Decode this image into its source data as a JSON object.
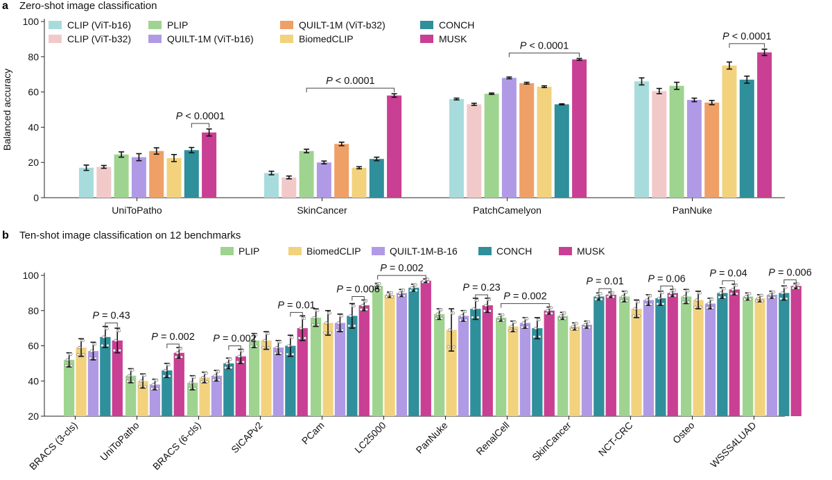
{
  "chart_data": [
    {
      "panel": "a",
      "type": "bar",
      "title": "Zero-shot image classification",
      "ylabel": "Balanced accuracy",
      "ylim": [
        0,
        100
      ],
      "yticks": [
        0,
        20,
        40,
        60,
        80,
        100
      ],
      "categories": [
        "UniToPatho",
        "SkinCancer",
        "PatchCamelyon",
        "PanNuke"
      ],
      "series": [
        {
          "name": "CLIP (ViT-b16)",
          "color": "#a8dcdc",
          "values": [
            17,
            14,
            56,
            66
          ],
          "err": [
            1.5,
            1,
            0.5,
            2
          ]
        },
        {
          "name": "CLIP (ViT-b32)",
          "color": "#f2c9c9",
          "values": [
            17.5,
            11.5,
            53,
            60.5
          ],
          "err": [
            0.8,
            0.8,
            0.6,
            1.5
          ]
        },
        {
          "name": "PLIP",
          "color": "#9ed490",
          "values": [
            24.5,
            26.5,
            59,
            63.5
          ],
          "err": [
            1.5,
            1,
            0.4,
            2
          ]
        },
        {
          "name": "QUILT-1M (ViT-b16)",
          "color": "#b09ae6",
          "values": [
            23,
            20,
            68,
            55.5
          ],
          "err": [
            2,
            0.8,
            0.5,
            1
          ]
        },
        {
          "name": "QUILT-1M (ViT-b32)",
          "color": "#eea067",
          "values": [
            26.5,
            30.5,
            65,
            54
          ],
          "err": [
            1.8,
            1,
            0.5,
            1.2
          ]
        },
        {
          "name": "BiomedCLIP",
          "color": "#f3d27e",
          "values": [
            22.5,
            17,
            63,
            75
          ],
          "err": [
            2,
            0.6,
            0.5,
            2
          ]
        },
        {
          "name": "CONCH",
          "color": "#2f8f9b",
          "values": [
            27,
            22,
            53,
            67
          ],
          "err": [
            1.5,
            1,
            0.3,
            2
          ]
        },
        {
          "name": "MUSK",
          "color": "#c93f93",
          "values": [
            37,
            58,
            78.5,
            82.5
          ],
          "err": [
            2,
            1,
            0.5,
            1.8
          ]
        }
      ],
      "annotations": [
        {
          "text": "P < 0.0001",
          "category": "UniToPatho",
          "from_series": "CONCH",
          "to_series": "MUSK"
        },
        {
          "text": "P < 0.0001",
          "category": "SkinCancer",
          "from_series": "PLIP",
          "to_series": "MUSK"
        },
        {
          "text": "P < 0.0001",
          "category": "PatchCamelyon",
          "from_series": "QUILT-1M (ViT-b16)",
          "to_series": "MUSK"
        },
        {
          "text": "P < 0.0001",
          "category": "PanNuke",
          "from_series": "BiomedCLIP",
          "to_series": "MUSK"
        }
      ],
      "legend_position": "top-left"
    },
    {
      "panel": "b",
      "type": "bar",
      "title": "Ten-shot image classification on 12 benchmarks",
      "ylabel": "",
      "ylim": [
        20,
        100
      ],
      "yticks": [
        20,
        40,
        60,
        80,
        100
      ],
      "categories": [
        "BRACS (3-cls)",
        "UniToPatho",
        "BRACS (6-cls)",
        "SICAPv2",
        "PCam",
        "LC25000",
        "PanNuke",
        "RenalCell",
        "SkinCancer",
        "NCT-CRC",
        "Osteo",
        "WSSS4LUAD"
      ],
      "series": [
        {
          "name": "PLIP",
          "color": "#9ed490",
          "values": [
            52,
            43,
            39,
            63,
            76,
            94,
            78,
            76,
            77,
            88,
            88,
            88
          ],
          "err": [
            4,
            4,
            4,
            4,
            5,
            1.5,
            3,
            2,
            2,
            3,
            4,
            2
          ]
        },
        {
          "name": "BiomedCLIP",
          "color": "#f3d27e",
          "values": [
            59,
            40,
            42,
            63,
            73,
            89,
            69,
            71,
            71,
            81,
            86,
            87
          ],
          "err": [
            5,
            4,
            3,
            5,
            7,
            1.5,
            12,
            3,
            2,
            5,
            5,
            2
          ]
        },
        {
          "name": "QUILT-1M-B-16",
          "color": "#b09ae6",
          "values": [
            57,
            38,
            43,
            59,
            73,
            90,
            77,
            73,
            72,
            86,
            84,
            89
          ],
          "err": [
            5,
            3,
            3,
            4,
            5,
            2,
            3,
            3,
            2,
            3,
            3,
            2
          ]
        },
        {
          "name": "CONCH",
          "color": "#2f8f9b",
          "values": [
            65,
            46,
            50,
            60,
            77,
            93,
            81,
            70,
            88,
            87,
            90,
            90
          ],
          "err": [
            6,
            4,
            3,
            6,
            7,
            2,
            6,
            6,
            2,
            4,
            3,
            4
          ]
        },
        {
          "name": "MUSK",
          "color": "#c93f93",
          "values": [
            63,
            56,
            54,
            70,
            83,
            97,
            83,
            80,
            89,
            90,
            92,
            94
          ],
          "err": [
            7,
            3,
            4,
            7,
            3,
            1,
            4,
            2,
            1.5,
            2,
            3,
            1.5
          ]
        }
      ],
      "annotations": [
        {
          "text": "P = 0.43",
          "category": "BRACS (3-cls)",
          "from_series": "CONCH",
          "to_series": "MUSK"
        },
        {
          "text": "P = 0.002",
          "category": "UniToPatho",
          "from_series": "CONCH",
          "to_series": "MUSK"
        },
        {
          "text": "P = 0.002",
          "category": "BRACS (6-cls)",
          "from_series": "CONCH",
          "to_series": "MUSK"
        },
        {
          "text": "P = 0.01",
          "category": "SICAPv2",
          "from_series": "CONCH",
          "to_series": "MUSK"
        },
        {
          "text": "P = 0.006",
          "category": "PCam",
          "from_series": "CONCH",
          "to_series": "MUSK"
        },
        {
          "text": "P = 0.002",
          "category": "LC25000",
          "from_series": "PLIP",
          "to_series": "MUSK"
        },
        {
          "text": "P = 0.23",
          "category": "PanNuke",
          "from_series": "CONCH",
          "to_series": "MUSK"
        },
        {
          "text": "P = 0.002",
          "category": "RenalCell",
          "from_series": "PLIP",
          "to_series": "MUSK"
        },
        {
          "text": "P = 0.01",
          "category": "SkinCancer",
          "from_series": "CONCH",
          "to_series": "MUSK"
        },
        {
          "text": "P = 0.06",
          "category": "NCT-CRC",
          "from_series": "CONCH",
          "to_series": "MUSK"
        },
        {
          "text": "P = 0.04",
          "category": "Osteo",
          "from_series": "CONCH",
          "to_series": "MUSK"
        },
        {
          "text": "P = 0.006",
          "category": "WSSS4LUAD",
          "from_series": "CONCH",
          "to_series": "MUSK"
        }
      ],
      "legend_position": "top-center"
    }
  ],
  "panel_a": {
    "letter": "a",
    "title": "Zero-shot image classification",
    "ylabel": "Balanced accuracy"
  },
  "panel_b": {
    "letter": "b",
    "title": "Ten-shot image classification on 12 benchmarks"
  }
}
